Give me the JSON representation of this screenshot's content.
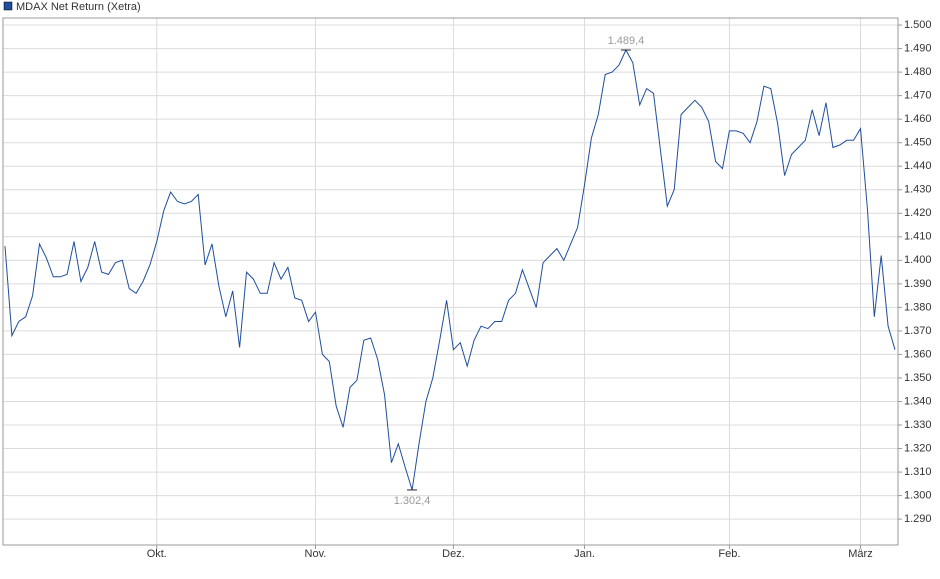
{
  "chart_data": {
    "type": "line",
    "grid": true,
    "legend": "top-left",
    "categories": [
      null,
      null,
      null,
      null,
      null,
      null,
      null,
      null,
      null,
      null,
      null,
      null,
      null,
      null,
      null,
      null,
      null,
      null,
      null,
      null,
      null,
      null,
      "Okt.",
      null,
      null,
      null,
      null,
      null,
      null,
      null,
      null,
      null,
      null,
      null,
      null,
      null,
      null,
      null,
      null,
      null,
      null,
      null,
      null,
      null,
      null,
      "Nov.",
      null,
      null,
      null,
      null,
      null,
      null,
      null,
      null,
      null,
      null,
      null,
      null,
      null,
      null,
      null,
      null,
      null,
      null,
      null,
      "Dez.",
      null,
      null,
      null,
      null,
      null,
      null,
      null,
      null,
      null,
      null,
      null,
      null,
      null,
      null,
      null,
      null,
      null,
      null,
      "Jan.",
      null,
      null,
      null,
      null,
      null,
      null,
      null,
      null,
      null,
      null,
      null,
      null,
      null,
      null,
      null,
      null,
      null,
      null,
      null,
      null,
      "Feb.",
      null,
      null,
      null,
      null,
      null,
      null,
      null,
      null,
      null,
      null,
      null,
      null,
      null,
      null,
      null,
      null,
      null,
      null,
      "März",
      null,
      null,
      null,
      null,
      null
    ],
    "series": [
      {
        "name": "MDAX Net Return (Xetra)",
        "color": "#1f4e9c",
        "values": [
          1406,
          1368,
          1374,
          1376,
          1385,
          1407,
          1401,
          1393,
          1393,
          1394,
          1408,
          1391,
          1397,
          1408,
          1395,
          1394,
          1399,
          1400,
          1388,
          1386,
          1391,
          1398,
          1408,
          1421,
          1429,
          1425,
          1424,
          1425,
          1428,
          1398,
          1407,
          1389,
          1376,
          1387,
          1363,
          1395,
          1392,
          1386,
          1386,
          1399,
          1392,
          1397,
          1384,
          1383,
          1374,
          1378,
          1360,
          1357,
          1338,
          1329,
          1346,
          1349,
          1366,
          1367,
          1358,
          1343,
          1314,
          1322,
          1312,
          1302.4,
          1322,
          1340,
          1350,
          1366,
          1383,
          1362,
          1365,
          1355,
          1366,
          1372,
          1371,
          1374,
          1374,
          1383,
          1386,
          1396,
          1388,
          1380,
          1399,
          1402,
          1405,
          1400,
          1407,
          1414,
          1432,
          1452,
          1462,
          1479,
          1480,
          1483,
          1489.4,
          1484,
          1466,
          1473,
          1471,
          1447,
          1423,
          1430,
          1462,
          1465,
          1468,
          1465,
          1459,
          1442,
          1439,
          1455,
          1455,
          1454,
          1450,
          1459,
          1474,
          1473,
          1458,
          1436,
          1445,
          1448,
          1451,
          1464,
          1453,
          1467,
          1448,
          1449,
          1451,
          1451,
          1456,
          1422,
          1376,
          1402,
          1372,
          1362
        ],
        "value_labels": [
          null,
          null,
          null,
          null,
          null,
          null,
          null,
          null,
          null,
          null,
          null,
          null,
          null,
          null,
          null,
          null,
          null,
          null,
          null,
          null,
          null,
          null,
          null,
          null,
          null,
          null,
          null,
          null,
          null,
          null,
          null,
          null,
          null,
          null,
          null,
          null,
          null,
          null,
          null,
          null,
          null,
          null,
          null,
          null,
          null,
          null,
          null,
          null,
          null,
          null,
          null,
          null,
          null,
          null,
          null,
          null,
          null,
          null,
          null,
          "1.302,4",
          null,
          null,
          null,
          null,
          null,
          null,
          null,
          null,
          null,
          null,
          null,
          null,
          null,
          null,
          null,
          null,
          null,
          null,
          null,
          null,
          null,
          null,
          null,
          null,
          null,
          null,
          null,
          null,
          null,
          null,
          "1.489,4",
          null,
          null,
          null,
          null,
          null,
          null,
          null,
          null,
          null,
          null,
          null,
          null,
          null,
          null,
          null,
          null,
          null,
          null,
          null,
          null,
          null,
          null,
          null,
          null,
          null,
          null,
          null,
          null,
          null,
          null,
          null,
          null,
          null,
          null,
          null,
          null,
          null,
          null,
          null
        ]
      }
    ],
    "ylim": [
      1279,
      1503
    ],
    "yticks": [
      {
        "value": 1290,
        "label": "1.290"
      },
      {
        "value": 1300,
        "label": "1.300"
      },
      {
        "value": 1310,
        "label": "1.310"
      },
      {
        "value": 1320,
        "label": "1.320"
      },
      {
        "value": 1330,
        "label": "1.330"
      },
      {
        "value": 1340,
        "label": "1.340"
      },
      {
        "value": 1350,
        "label": "1.350"
      },
      {
        "value": 1360,
        "label": "1.360"
      },
      {
        "value": 1370,
        "label": "1.370"
      },
      {
        "value": 1380,
        "label": "1.380"
      },
      {
        "value": 1390,
        "label": "1.390"
      },
      {
        "value": 1400,
        "label": "1.400"
      },
      {
        "value": 1410,
        "label": "1.410"
      },
      {
        "value": 1420,
        "label": "1.420"
      },
      {
        "value": 1430,
        "label": "1.430"
      },
      {
        "value": 1440,
        "label": "1.440"
      },
      {
        "value": 1450,
        "label": "1.450"
      },
      {
        "value": 1460,
        "label": "1.460"
      },
      {
        "value": 1470,
        "label": "1.470"
      },
      {
        "value": 1480,
        "label": "1.480"
      },
      {
        "value": 1490,
        "label": "1.490"
      },
      {
        "value": 1500,
        "label": "1.500"
      }
    ]
  }
}
